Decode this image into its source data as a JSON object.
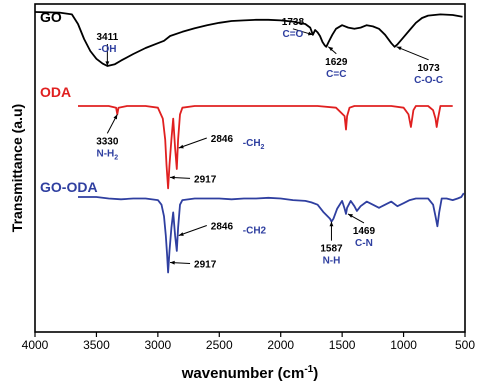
{
  "chart_data": {
    "type": "line",
    "xlabel": "wavenumber (cm",
    "xlabel_sup": "-1",
    "xlabel_close": ")",
    "ylabel": "Transmittance (a.u)",
    "xlim": [
      4000,
      500
    ],
    "x_ticks": [
      "4000",
      "3500",
      "3000",
      "2500",
      "2000",
      "1500",
      "1000",
      "500"
    ],
    "legend": "none",
    "grid": false,
    "series": [
      {
        "name": "GO",
        "color": "#000000",
        "label_color": "#000000",
        "y_offset": 0.84,
        "points": [
          [
            4000,
            1.0
          ],
          [
            3800,
            0.99
          ],
          [
            3700,
            0.96
          ],
          [
            3650,
            0.8
          ],
          [
            3600,
            0.55
          ],
          [
            3550,
            0.35
          ],
          [
            3500,
            0.22
          ],
          [
            3450,
            0.14
          ],
          [
            3411,
            0.1
          ],
          [
            3350,
            0.13
          ],
          [
            3300,
            0.19
          ],
          [
            3200,
            0.3
          ],
          [
            3100,
            0.4
          ],
          [
            3000,
            0.48
          ],
          [
            2950,
            0.52
          ],
          [
            2900,
            0.6
          ],
          [
            2800,
            0.67
          ],
          [
            2700,
            0.73
          ],
          [
            2600,
            0.78
          ],
          [
            2500,
            0.82
          ],
          [
            2400,
            0.85
          ],
          [
            2300,
            0.86
          ],
          [
            2200,
            0.87
          ],
          [
            2100,
            0.87
          ],
          [
            2000,
            0.86
          ],
          [
            1900,
            0.84
          ],
          [
            1800,
            0.8
          ],
          [
            1760,
            0.74
          ],
          [
            1738,
            0.62
          ],
          [
            1720,
            0.7
          ],
          [
            1700,
            0.66
          ],
          [
            1680,
            0.6
          ],
          [
            1660,
            0.5
          ],
          [
            1640,
            0.44
          ],
          [
            1629,
            0.42
          ],
          [
            1610,
            0.5
          ],
          [
            1580,
            0.62
          ],
          [
            1550,
            0.72
          ],
          [
            1500,
            0.78
          ],
          [
            1450,
            0.74
          ],
          [
            1400,
            0.72
          ],
          [
            1350,
            0.74
          ],
          [
            1300,
            0.78
          ],
          [
            1250,
            0.76
          ],
          [
            1200,
            0.72
          ],
          [
            1150,
            0.62
          ],
          [
            1100,
            0.48
          ],
          [
            1073,
            0.42
          ],
          [
            1050,
            0.46
          ],
          [
            1000,
            0.58
          ],
          [
            950,
            0.7
          ],
          [
            900,
            0.82
          ],
          [
            850,
            0.9
          ],
          [
            800,
            0.94
          ],
          [
            700,
            0.96
          ],
          [
            600,
            0.95
          ],
          [
            520,
            0.92
          ]
        ]
      },
      {
        "name": "ODA",
        "color": "#e02020",
        "label_color": "#e02020",
        "y_offset": 0.535,
        "points": [
          [
            3650,
            1.0
          ],
          [
            3400,
            1.0
          ],
          [
            3340,
            0.98
          ],
          [
            3330,
            0.9
          ],
          [
            3320,
            0.98
          ],
          [
            3250,
            1.0
          ],
          [
            3100,
            1.0
          ],
          [
            3000,
            0.98
          ],
          [
            2960,
            0.85
          ],
          [
            2940,
            0.6
          ],
          [
            2930,
            0.3
          ],
          [
            2917,
            0.02
          ],
          [
            2905,
            0.3
          ],
          [
            2890,
            0.6
          ],
          [
            2875,
            0.85
          ],
          [
            2860,
            0.5
          ],
          [
            2846,
            0.25
          ],
          [
            2835,
            0.6
          ],
          [
            2820,
            0.9
          ],
          [
            2800,
            0.98
          ],
          [
            2700,
            1.0
          ],
          [
            2500,
            1.0
          ],
          [
            2300,
            1.0
          ],
          [
            2100,
            1.0
          ],
          [
            1900,
            1.0
          ],
          [
            1700,
            1.0
          ],
          [
            1550,
            0.98
          ],
          [
            1480,
            0.88
          ],
          [
            1469,
            0.72
          ],
          [
            1460,
            0.88
          ],
          [
            1440,
            0.98
          ],
          [
            1400,
            1.0
          ],
          [
            1300,
            1.0
          ],
          [
            1200,
            1.0
          ],
          [
            1100,
            1.0
          ],
          [
            1000,
            0.98
          ],
          [
            960,
            0.9
          ],
          [
            940,
            0.75
          ],
          [
            920,
            0.95
          ],
          [
            900,
            1.0
          ],
          [
            800,
            1.0
          ],
          [
            760,
            0.95
          ],
          [
            740,
            0.85
          ],
          [
            730,
            0.75
          ],
          [
            720,
            0.85
          ],
          [
            700,
            1.0
          ],
          [
            600,
            1.0
          ]
        ]
      },
      {
        "name": "GO-ODA",
        "color": "#2f3fa0",
        "label_color": "#2f3fa0",
        "y_offset": 0.15,
        "points": [
          [
            3650,
            1.0
          ],
          [
            3500,
            1.0
          ],
          [
            3400,
            0.98
          ],
          [
            3300,
            0.97
          ],
          [
            3200,
            0.98
          ],
          [
            3100,
            0.98
          ],
          [
            3000,
            0.96
          ],
          [
            2970,
            0.9
          ],
          [
            2950,
            0.75
          ],
          [
            2935,
            0.5
          ],
          [
            2925,
            0.25
          ],
          [
            2917,
            0.02
          ],
          [
            2905,
            0.3
          ],
          [
            2890,
            0.6
          ],
          [
            2875,
            0.8
          ],
          [
            2860,
            0.5
          ],
          [
            2846,
            0.3
          ],
          [
            2835,
            0.6
          ],
          [
            2820,
            0.9
          ],
          [
            2800,
            0.96
          ],
          [
            2700,
            0.98
          ],
          [
            2500,
            0.98
          ],
          [
            2400,
            0.97
          ],
          [
            2300,
            0.98
          ],
          [
            2200,
            0.98
          ],
          [
            2100,
            0.99
          ],
          [
            2000,
            0.98
          ],
          [
            1900,
            0.96
          ],
          [
            1800,
            0.95
          ],
          [
            1750,
            0.93
          ],
          [
            1700,
            0.9
          ],
          [
            1650,
            0.8
          ],
          [
            1600,
            0.72
          ],
          [
            1587,
            0.68
          ],
          [
            1570,
            0.72
          ],
          [
            1540,
            0.85
          ],
          [
            1500,
            0.95
          ],
          [
            1480,
            0.85
          ],
          [
            1469,
            0.78
          ],
          [
            1460,
            0.86
          ],
          [
            1430,
            0.95
          ],
          [
            1400,
            0.88
          ],
          [
            1380,
            0.82
          ],
          [
            1350,
            0.88
          ],
          [
            1300,
            0.94
          ],
          [
            1250,
            0.9
          ],
          [
            1200,
            0.86
          ],
          [
            1150,
            0.9
          ],
          [
            1100,
            0.94
          ],
          [
            1050,
            0.88
          ],
          [
            1000,
            0.92
          ],
          [
            950,
            0.96
          ],
          [
            900,
            0.98
          ],
          [
            800,
            0.98
          ],
          [
            760,
            0.9
          ],
          [
            740,
            0.75
          ],
          [
            725,
            0.62
          ],
          [
            710,
            0.8
          ],
          [
            690,
            0.98
          ],
          [
            650,
            0.98
          ],
          [
            600,
            0.96
          ],
          [
            560,
            0.98
          ],
          [
            530,
            1.0
          ],
          [
            510,
            1.05
          ]
        ]
      }
    ],
    "annotations": [
      {
        "series": 0,
        "x": 3411,
        "number": "3411",
        "group": "-OH"
      },
      {
        "series": 0,
        "x": 1738,
        "number": "1738",
        "group": "C=O"
      },
      {
        "series": 0,
        "x": 1629,
        "number": "1629",
        "group": "C=C"
      },
      {
        "series": 0,
        "x": 1073,
        "number": "1073",
        "group": "C-O-C"
      },
      {
        "series": 1,
        "x": 3330,
        "number": "3330",
        "group": "N-H",
        "group_sub": "2"
      },
      {
        "series": 1,
        "x": 2846,
        "number": "2846",
        "group": "-CH",
        "group_sub": "2"
      },
      {
        "series": 1,
        "x": 2917,
        "number": "2917",
        "group": ""
      },
      {
        "series": 2,
        "x": 2846,
        "number": "2846",
        "group": "-CH2"
      },
      {
        "series": 2,
        "x": 2917,
        "number": "2917",
        "group": ""
      },
      {
        "series": 2,
        "x": 1587,
        "number": "1587",
        "group": "N-H"
      },
      {
        "series": 2,
        "x": 1469,
        "number": "1469",
        "group": "C-N"
      }
    ]
  }
}
